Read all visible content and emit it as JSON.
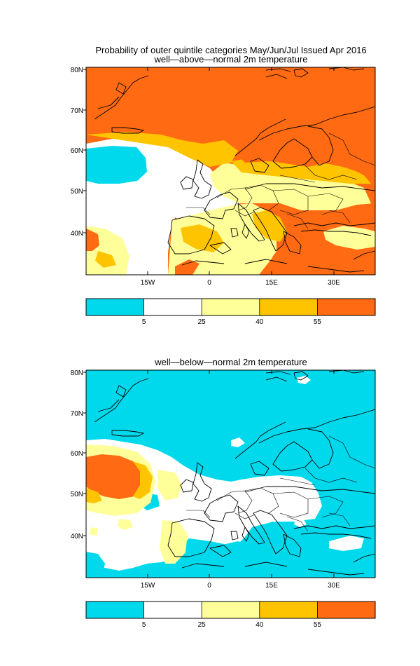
{
  "figure": {
    "title_line1": "Probability of outer quintile categories May/Jun/Jul Issued Apr 2016"
  },
  "colors": {
    "band_0_5": "#00d8ec",
    "band_5_25": "#ffffff",
    "band_25_40": "#ffff99",
    "band_40_55": "#ffc400",
    "band_55_up": "#ff6a12"
  },
  "colorbar_ticks": [
    "5",
    "25",
    "40",
    "55"
  ],
  "panels": [
    {
      "subtitle": "well—above—normal 2m temperature",
      "lat_labels": [
        "80N",
        "70N",
        "60N",
        "50N",
        "40N"
      ],
      "lon_labels": [
        "15W",
        "0",
        "15E",
        "30E"
      ]
    },
    {
      "subtitle": "well—below—normal 2m temperature",
      "lat_labels": [
        "80N",
        "70N",
        "60N",
        "50N",
        "40N"
      ],
      "lon_labels": [
        "15W",
        "0",
        "15E",
        "30E"
      ]
    }
  ]
}
